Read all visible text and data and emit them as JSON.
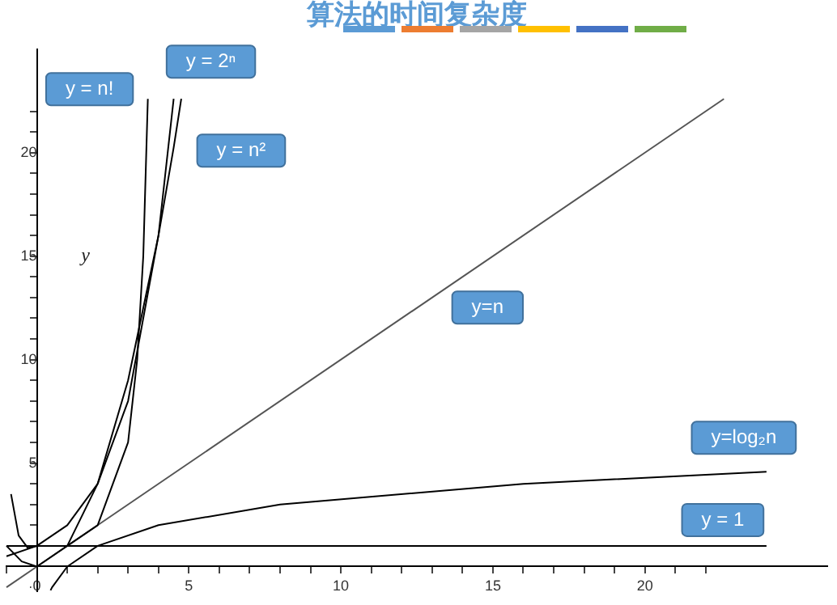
{
  "chart_data": {
    "type": "line",
    "title": "算法的时间复杂度",
    "ylabel": "y",
    "xlim": [
      -1,
      26
    ],
    "ylim": [
      -1.2,
      25
    ],
    "xticks": [
      {
        "value": -1,
        "label": null
      },
      {
        "value": 0,
        "label": "0"
      },
      {
        "value": 1,
        "label": null
      },
      {
        "value": 2,
        "label": null
      },
      {
        "value": 3,
        "label": null
      },
      {
        "value": 4,
        "label": null
      },
      5,
      {
        "value": 6,
        "label": null
      },
      {
        "value": 7,
        "label": null
      },
      {
        "value": 8,
        "label": null
      },
      {
        "value": 9,
        "label": null
      },
      10,
      {
        "value": 11,
        "label": null
      },
      {
        "value": 12,
        "label": null
      },
      {
        "value": 13,
        "label": null
      },
      {
        "value": 14,
        "label": null
      },
      15,
      {
        "value": 16,
        "label": null
      },
      {
        "value": 17,
        "label": null
      },
      {
        "value": 18,
        "label": null
      },
      {
        "value": 19,
        "label": null
      },
      20,
      {
        "value": 21,
        "label": null
      },
      {
        "value": 22,
        "label": null
      }
    ],
    "yticks": [
      {
        "value": -1,
        "label": null
      },
      {
        "value": 1,
        "label": null
      },
      {
        "value": 2,
        "label": null
      },
      {
        "value": 3,
        "label": null
      },
      {
        "value": 4,
        "label": null
      },
      5,
      {
        "value": 6,
        "label": null
      },
      {
        "value": 7,
        "label": null
      },
      {
        "value": 8,
        "label": null
      },
      {
        "value": 9,
        "label": null
      },
      10,
      {
        "value": 11,
        "label": null
      },
      {
        "value": 12,
        "label": null
      },
      {
        "value": 13,
        "label": null
      },
      {
        "value": 14,
        "label": null
      },
      15,
      {
        "value": 16,
        "label": null
      },
      {
        "value": 17,
        "label": null
      },
      {
        "value": 18,
        "label": null
      },
      {
        "value": 19,
        "label": null
      },
      20,
      {
        "value": 21,
        "label": null
      },
      {
        "value": 22,
        "label": null
      }
    ],
    "grid": false,
    "legend": false,
    "marker": "none",
    "line_style": "solid",
    "series": [
      {
        "name": "y = n!",
        "color": "#000000",
        "x": [
          -0.85,
          -0.6,
          -0.3,
          0,
          1,
          2,
          3,
          3.3,
          3.5,
          3.65
        ],
        "values": [
          3.5,
          1.5,
          0.9,
          1,
          1,
          2,
          6,
          10,
          15,
          22.6
        ]
      },
      {
        "name": "y = 2ⁿ",
        "color": "#000000",
        "x": [
          -1,
          0,
          1,
          2,
          3,
          4,
          4.5
        ],
        "values": [
          0.5,
          1,
          2,
          4,
          8,
          16,
          22.6
        ]
      },
      {
        "name": "y = n²",
        "color": "#000000",
        "x": [
          -1,
          -0.5,
          0,
          1,
          2,
          3,
          4,
          4.5,
          4.75
        ],
        "values": [
          1,
          0.25,
          0,
          1,
          4,
          9,
          16,
          20.25,
          22.6
        ]
      },
      {
        "name": "y=n",
        "color": "#555555",
        "x": [
          -1,
          0,
          22.6
        ],
        "values": [
          -1,
          0,
          22.6
        ]
      },
      {
        "name": "y=log₂n",
        "color": "#000000",
        "x": [
          0.45,
          0.5,
          1,
          2,
          4,
          8,
          16,
          24
        ],
        "values": [
          -1.15,
          -1,
          0,
          1,
          2,
          3,
          4,
          4.58
        ]
      },
      {
        "name": "y = 1",
        "color": "#000000",
        "x": [
          -1,
          24
        ],
        "values": [
          1,
          1
        ]
      }
    ]
  }
}
